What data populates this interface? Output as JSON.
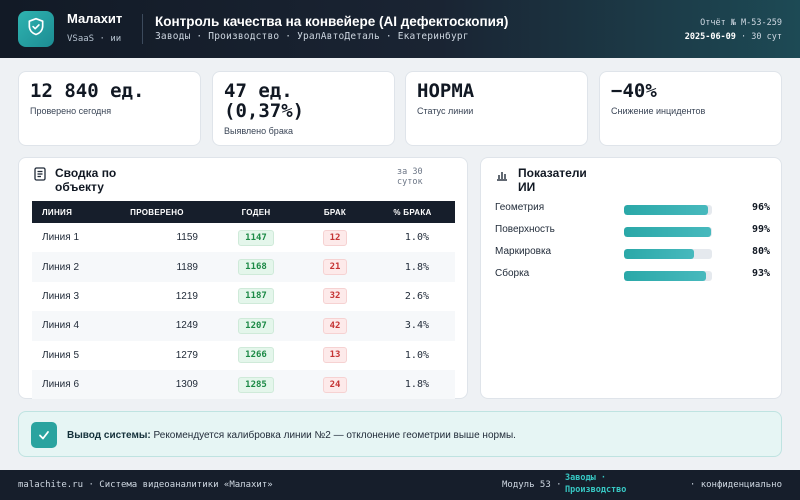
{
  "header": {
    "brand_name": "Малахит",
    "brand_sub": "VSaaS · ии",
    "title": "Контроль качества на конвейере (AI дефектоскопия)",
    "breadcrumbs": "Заводы · Производство · УралАвтоДеталь · Екатеринбург",
    "report_no": "Отчёт № M-53-259",
    "report_date": "2025-06-09",
    "report_period": "· 30 сут",
    "logo_icon": "shield-check-icon"
  },
  "kpis": [
    {
      "value": "12 840 ед.",
      "label": "Проверено сегодня"
    },
    {
      "value": "47 ед. (0,37%)",
      "label": "Выявлено брака"
    },
    {
      "value": "НОРМА",
      "label": "Статус линии"
    },
    {
      "value": "−40%",
      "label": "Снижение инцидентов"
    }
  ],
  "summary": {
    "title": "Сводка по объекту",
    "subtitle": "за 30 суток",
    "icon": "document-icon",
    "columns": [
      "ЛИНИЯ",
      "ПРОВЕРЕНО",
      "ГОДЕН",
      "БРАК",
      "% БРАКА"
    ],
    "rows": [
      {
        "line": "Линия 1",
        "checked": "1159",
        "good": "1147",
        "bad": "12",
        "pct": "1.0%"
      },
      {
        "line": "Линия 2",
        "checked": "1189",
        "good": "1168",
        "bad": "21",
        "pct": "1.8%"
      },
      {
        "line": "Линия 3",
        "checked": "1219",
        "good": "1187",
        "bad": "32",
        "pct": "2.6%"
      },
      {
        "line": "Линия 4",
        "checked": "1249",
        "good": "1207",
        "bad": "42",
        "pct": "3.4%"
      },
      {
        "line": "Линия 5",
        "checked": "1279",
        "good": "1266",
        "bad": "13",
        "pct": "1.0%"
      },
      {
        "line": "Линия 6",
        "checked": "1309",
        "good": "1285",
        "bad": "24",
        "pct": "1.8%"
      }
    ]
  },
  "metrics": {
    "title": "Показатели ИИ",
    "icon": "bar-chart-icon",
    "items": [
      {
        "label": "Геометрия",
        "value": "96%",
        "fraction": 0.96
      },
      {
        "label": "Поверхность",
        "value": "99%",
        "fraction": 0.99
      },
      {
        "label": "Маркировка",
        "value": "80%",
        "fraction": 0.8
      },
      {
        "label": "Сборка",
        "value": "93%",
        "fraction": 0.93
      }
    ]
  },
  "conclusion": {
    "label": "Вывод системы:",
    "text": "Рекомендуется калибровка линии №2 — отклонение геометрии выше нормы.",
    "icon": "check-icon"
  },
  "footer": {
    "left": "malachite.ru · Система видеоаналитики «Малахит»",
    "module": "Модуль 53 ·",
    "section": "Заводы · Производство",
    "right": "· конфиденциально"
  },
  "colors": {
    "accent": "#2aa39f",
    "header_bg": "#121a26",
    "good": "#1c8a46",
    "bad": "#c53434"
  }
}
